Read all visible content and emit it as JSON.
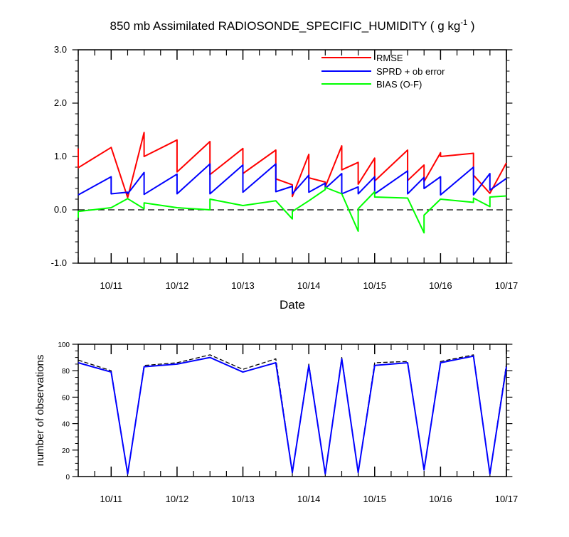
{
  "chart_data": [
    {
      "type": "line",
      "title": "850 mb Assimilated RADIOSONDE_SPECIFIC_HUMIDITY ( g kg",
      "title_sup": "-1",
      "title_end": " )",
      "xlabel": "Date",
      "ylabel": "",
      "xlim": [
        0,
        6.5
      ],
      "ylim": [
        -1.0,
        3.0
      ],
      "y_ticks": [
        -1.0,
        0.0,
        1.0,
        2.0,
        3.0
      ],
      "y_tick_labels": [
        "-1.0",
        "0.0",
        "1.0",
        "2.0",
        "3.0"
      ],
      "x_ticks": [
        0.5,
        1.5,
        2.5,
        3.5,
        4.5,
        5.5,
        6.5
      ],
      "x_tick_labels": [
        "10/11",
        "10/12",
        "10/13",
        "10/14",
        "10/15",
        "10/16",
        "10/17"
      ],
      "zero_line": true,
      "legend_position": "top-right",
      "series": [
        {
          "name": "RMSE",
          "color": "#ff0000",
          "points": [
            [
              0,
              1.15
            ],
            [
              0,
              0.79
            ],
            [
              0.5,
              1.17
            ],
            [
              0.75,
              0.23
            ],
            [
              0.75,
              0.23
            ],
            [
              1.0,
              1.45
            ],
            [
              1.0,
              1.0
            ],
            [
              1.5,
              1.31
            ],
            [
              1.5,
              0.71
            ],
            [
              2.0,
              1.28
            ],
            [
              2.0,
              0.66
            ],
            [
              2.5,
              1.15
            ],
            [
              2.5,
              0.68
            ],
            [
              3.0,
              1.12
            ],
            [
              3.0,
              0.58
            ],
            [
              3.25,
              0.47
            ],
            [
              3.25,
              0.25
            ],
            [
              3.5,
              1.04
            ],
            [
              3.5,
              0.6
            ],
            [
              3.75,
              0.52
            ],
            [
              3.75,
              0.43
            ],
            [
              4.0,
              1.2
            ],
            [
              4.0,
              0.75
            ],
            [
              4.25,
              0.89
            ],
            [
              4.25,
              0.48
            ],
            [
              4.5,
              0.97
            ],
            [
              4.5,
              0.54
            ],
            [
              5.0,
              1.12
            ],
            [
              5.0,
              0.55
            ],
            [
              5.25,
              0.84
            ],
            [
              5.25,
              0.53
            ],
            [
              5.5,
              1.07
            ],
            [
              5.5,
              1.0
            ],
            [
              6.0,
              1.06
            ],
            [
              6.0,
              0.65
            ],
            [
              6.25,
              0.31
            ],
            [
              6.5,
              0.88
            ]
          ]
        },
        {
          "name": "SPRD + ob error",
          "color": "#0000ff",
          "points": [
            [
              0,
              0.28
            ],
            [
              0.5,
              0.62
            ],
            [
              0.5,
              0.3
            ],
            [
              0.75,
              0.33
            ],
            [
              0.75,
              0.3
            ],
            [
              1.0,
              0.7
            ],
            [
              1.0,
              0.29
            ],
            [
              1.5,
              0.67
            ],
            [
              1.5,
              0.3
            ],
            [
              2.0,
              0.86
            ],
            [
              2.0,
              0.3
            ],
            [
              2.5,
              0.84
            ],
            [
              2.5,
              0.33
            ],
            [
              3.0,
              0.86
            ],
            [
              3.0,
              0.34
            ],
            [
              3.25,
              0.44
            ],
            [
              3.25,
              0.3
            ],
            [
              3.5,
              0.65
            ],
            [
              3.5,
              0.33
            ],
            [
              3.75,
              0.5
            ],
            [
              3.75,
              0.4
            ],
            [
              4.0,
              0.68
            ],
            [
              4.0,
              0.3
            ],
            [
              4.25,
              0.43
            ],
            [
              4.25,
              0.3
            ],
            [
              4.5,
              0.62
            ],
            [
              4.5,
              0.3
            ],
            [
              5.0,
              0.73
            ],
            [
              5.0,
              0.3
            ],
            [
              5.25,
              0.61
            ],
            [
              5.25,
              0.4
            ],
            [
              5.5,
              0.62
            ],
            [
              5.5,
              0.28
            ],
            [
              6.0,
              0.8
            ],
            [
              6.0,
              0.28
            ],
            [
              6.25,
              0.68
            ],
            [
              6.25,
              0.37
            ],
            [
              6.5,
              0.59
            ]
          ]
        },
        {
          "name": "BIAS (O-F)",
          "color": "#00ff00",
          "points": [
            [
              0,
              -0.15
            ],
            [
              0,
              -0.03
            ],
            [
              0.5,
              0.04
            ],
            [
              0.75,
              0.21
            ],
            [
              1.0,
              0.02
            ],
            [
              1.0,
              0.13
            ],
            [
              1.5,
              0.04
            ],
            [
              2.0,
              0.0
            ],
            [
              2.0,
              0.2
            ],
            [
              2.5,
              0.08
            ],
            [
              3.0,
              0.17
            ],
            [
              3.25,
              -0.17
            ],
            [
              3.25,
              -0.03
            ],
            [
              3.5,
              0.17
            ],
            [
              3.75,
              0.38
            ],
            [
              3.75,
              0.42
            ],
            [
              4.0,
              0.3
            ],
            [
              4.25,
              -0.4
            ],
            [
              4.25,
              0.02
            ],
            [
              4.5,
              0.34
            ],
            [
              4.5,
              0.24
            ],
            [
              5.0,
              0.22
            ],
            [
              5.25,
              -0.43
            ],
            [
              5.25,
              -0.1
            ],
            [
              5.5,
              0.2
            ],
            [
              6.0,
              0.14
            ],
            [
              6.0,
              0.22
            ],
            [
              6.25,
              0.06
            ],
            [
              6.25,
              0.24
            ],
            [
              6.5,
              0.26
            ]
          ]
        }
      ]
    },
    {
      "type": "line",
      "title": "",
      "xlabel": "",
      "ylabel": "number of observations",
      "xlim": [
        0,
        6.5
      ],
      "ylim": [
        0,
        100
      ],
      "y_ticks": [
        0,
        20,
        40,
        60,
        80,
        100
      ],
      "y_tick_labels": [
        "0",
        "20",
        "40",
        "60",
        "80",
        "100"
      ],
      "x_ticks": [
        0.5,
        1.5,
        2.5,
        3.5,
        4.5,
        5.5,
        6.5
      ],
      "x_tick_labels": [
        "10/11",
        "10/12",
        "10/13",
        "10/14",
        "10/15",
        "10/16",
        "10/17"
      ],
      "series": [
        {
          "name": "",
          "color": "#000000",
          "dashed": true,
          "points": [
            [
              0,
              88
            ],
            [
              0.5,
              80
            ],
            [
              0.75,
              2
            ],
            [
              1.0,
              84
            ],
            [
              1.5,
              86
            ],
            [
              2.0,
              92
            ],
            [
              2.5,
              81
            ],
            [
              3.0,
              89
            ],
            [
              3.25,
              3
            ],
            [
              3.5,
              85
            ],
            [
              3.75,
              2
            ],
            [
              4.0,
              90
            ],
            [
              4.25,
              3
            ],
            [
              4.5,
              86
            ],
            [
              5.0,
              87
            ],
            [
              5.25,
              5
            ],
            [
              5.5,
              87
            ],
            [
              6.0,
              92
            ],
            [
              6.25,
              2
            ],
            [
              6.5,
              85
            ]
          ]
        },
        {
          "name": "",
          "color": "#0000ff",
          "dashed": false,
          "points": [
            [
              0,
              86
            ],
            [
              0.5,
              79
            ],
            [
              0.75,
              2
            ],
            [
              1.0,
              83
            ],
            [
              1.5,
              85
            ],
            [
              2.0,
              90
            ],
            [
              2.5,
              79
            ],
            [
              3.0,
              86
            ],
            [
              3.25,
              3
            ],
            [
              3.5,
              84
            ],
            [
              3.75,
              2
            ],
            [
              4.0,
              89
            ],
            [
              4.25,
              3
            ],
            [
              4.5,
              84
            ],
            [
              5.0,
              86
            ],
            [
              5.25,
              5
            ],
            [
              5.5,
              86
            ],
            [
              6.0,
              91
            ],
            [
              6.25,
              2
            ],
            [
              6.5,
              83
            ]
          ]
        }
      ]
    }
  ]
}
